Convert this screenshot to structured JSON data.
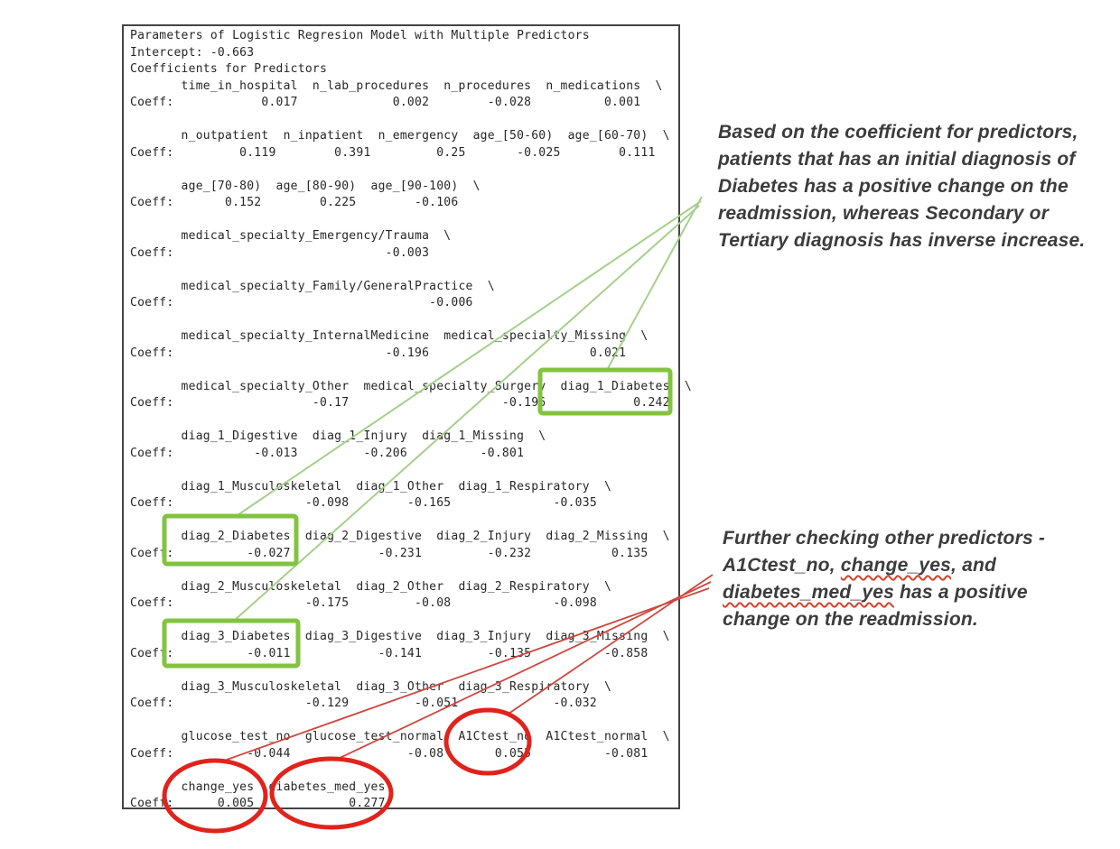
{
  "colors": {
    "green_box": "#82c341",
    "green_line": "#a6cf8b",
    "red_circle": "#e0231c",
    "red_line": "#cb4840",
    "console_border": "#444444",
    "console_text": "#262626",
    "note_text": "#3c3c3c"
  },
  "console": {
    "title_line": "Parameters of Logistic Regresion Model with Multiple Predictors",
    "intercept": "-0.663",
    "lines": [
      "Parameters of Logistic Regresion Model with Multiple Predictors",
      "Intercept: -0.663",
      "Coefficients for Predictors",
      "       time_in_hospital  n_lab_procedures  n_procedures  n_medications  \\",
      "Coeff:            0.017             0.002        -0.028          0.001",
      "",
      "       n_outpatient  n_inpatient  n_emergency  age_[50-60)  age_[60-70)  \\",
      "Coeff:         0.119        0.391         0.25       -0.025        0.111",
      "",
      "       age_[70-80)  age_[80-90)  age_[90-100)  \\",
      "Coeff:       0.152        0.225        -0.106",
      "",
      "       medical_specialty_Emergency/Trauma  \\",
      "Coeff:                             -0.003",
      "",
      "       medical_specialty_Family/GeneralPractice  \\",
      "Coeff:                                   -0.006",
      "",
      "       medical_specialty_InternalMedicine  medical_specialty_Missing  \\",
      "Coeff:                             -0.196                      0.021",
      "",
      "       medical_specialty_Other  medical_specialty_Surgery  diag_1_Diabetes  \\",
      "Coeff:                   -0.17                     -0.196            0.242",
      "",
      "       diag_1_Digestive  diag_1_Injury  diag_1_Missing  \\",
      "Coeff:           -0.013         -0.206          -0.801",
      "",
      "       diag_1_Musculoskeletal  diag_1_Other  diag_1_Respiratory  \\",
      "Coeff:                  -0.098        -0.165              -0.035",
      "",
      "       diag_2_Diabetes  diag_2_Digestive  diag_2_Injury  diag_2_Missing  \\",
      "Coeff:          -0.027            -0.231         -0.232           0.135",
      "",
      "       diag_2_Musculoskeletal  diag_2_Other  diag_2_Respiratory  \\",
      "Coeff:                  -0.175         -0.08              -0.098",
      "",
      "       diag_3_Diabetes  diag_3_Digestive  diag_3_Injury  diag_3_Missing  \\",
      "Coeff:          -0.011            -0.141         -0.135          -0.858",
      "",
      "       diag_3_Musculoskeletal  diag_3_Other  diag_3_Respiratory  \\",
      "Coeff:                  -0.129         -0.051             -0.032",
      "",
      "       glucose_test_no  glucose_test_normal  A1Ctest_no  A1Ctest_normal  \\",
      "Coeff:          -0.044                -0.08       0.055          -0.081",
      "",
      "       change_yes  diabetes_med_yes",
      "Coeff:      0.005             0.277"
    ]
  },
  "notes": {
    "note1": {
      "lines": [
        "Based on the coefficient for predictors,",
        "patients that has an initial diagnosis of",
        "Diabetes has a positive change on the",
        "readmission, whereas Secondary or",
        "Tertiary diagnosis has inverse increase."
      ]
    },
    "note2": {
      "lines": [
        [
          {
            "t": "Further checking other predictors -"
          }
        ],
        [
          {
            "t": "A1Ctest_no, "
          },
          {
            "t": "change_yes",
            "wavy": true
          },
          {
            "t": ", and"
          }
        ],
        [
          {
            "t": "diabetes_med_yes",
            "wavy": true
          },
          {
            "t": " has a positive"
          }
        ],
        [
          {
            "t": "change on the readmission."
          }
        ]
      ]
    }
  },
  "highlights": {
    "green_boxed_predictors": [
      {
        "name": "diag_1_Diabetes",
        "coeff": "0.242"
      },
      {
        "name": "diag_2_Diabetes",
        "coeff": "-0.027"
      },
      {
        "name": "diag_3_Diabetes",
        "coeff": "-0.011"
      }
    ],
    "red_circled_predictors": [
      {
        "name": "A1Ctest_no",
        "coeff": "0.055"
      },
      {
        "name": "change_yes",
        "coeff": "0.005"
      },
      {
        "name": "diabetes_med_yes",
        "coeff": "0.277"
      }
    ]
  }
}
